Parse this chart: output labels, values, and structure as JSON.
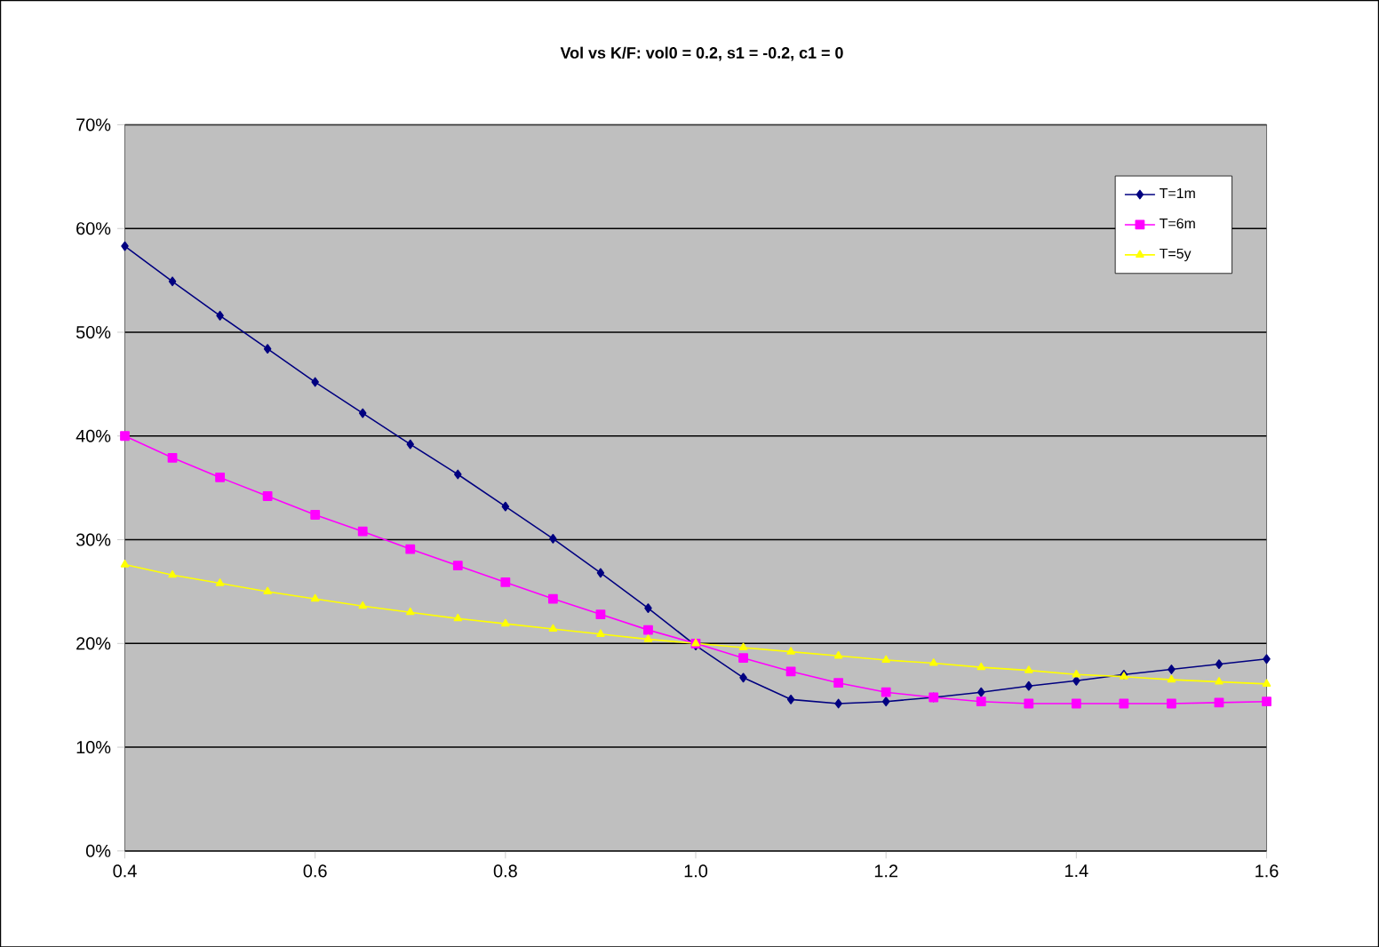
{
  "chart_data": {
    "type": "line",
    "title": "Vol vs K/F:  vol0 = 0.2, s1 = -0.2, c1 = 0",
    "x": [
      0.4,
      0.45,
      0.5,
      0.55,
      0.6,
      0.65,
      0.7,
      0.75,
      0.8,
      0.85,
      0.9,
      0.95,
      1.0,
      1.05,
      1.1,
      1.15,
      1.2,
      1.25,
      1.3,
      1.35,
      1.4,
      1.45,
      1.5,
      1.55,
      1.6
    ],
    "series": [
      {
        "name": "T=1m",
        "color": "#000080",
        "marker": "diamond",
        "values": [
          58.3,
          54.9,
          51.6,
          48.4,
          45.2,
          42.2,
          39.2,
          36.3,
          33.2,
          30.1,
          26.8,
          23.4,
          19.8,
          16.7,
          14.6,
          14.2,
          14.4,
          14.8,
          15.3,
          15.9,
          16.4,
          17.0,
          17.5,
          18.0,
          18.5
        ]
      },
      {
        "name": "T=6m",
        "color": "#ff00ff",
        "marker": "square",
        "values": [
          40.0,
          37.9,
          36.0,
          34.2,
          32.4,
          30.8,
          29.1,
          27.5,
          25.9,
          24.3,
          22.8,
          21.3,
          20.0,
          18.6,
          17.3,
          16.2,
          15.3,
          14.8,
          14.4,
          14.2,
          14.2,
          14.2,
          14.2,
          14.3,
          14.4
        ]
      },
      {
        "name": "T=5y",
        "color": "#ffff00",
        "marker": "triangle",
        "values": [
          27.6,
          26.6,
          25.8,
          25.0,
          24.3,
          23.6,
          23.0,
          22.4,
          21.9,
          21.4,
          20.9,
          20.4,
          20.0,
          19.6,
          19.2,
          18.8,
          18.4,
          18.1,
          17.7,
          17.4,
          17.0,
          16.8,
          16.5,
          16.3,
          16.1
        ]
      }
    ],
    "xlim": [
      0.4,
      1.6
    ],
    "xticks": [
      0.4,
      0.6,
      0.8,
      {
        "value": 1.0,
        "label": "1.0"
      },
      1.2,
      1.4,
      1.6
    ],
    "ylim": [
      0,
      70
    ],
    "yticks": [
      {
        "value": 0,
        "label": "0%"
      },
      {
        "value": 10,
        "label": "10%"
      },
      {
        "value": 20,
        "label": "20%"
      },
      {
        "value": 30,
        "label": "30%"
      },
      {
        "value": 40,
        "label": "40%"
      },
      {
        "value": 50,
        "label": "50%"
      },
      {
        "value": 60,
        "label": "60%"
      },
      {
        "value": 70,
        "label": "70%"
      }
    ],
    "grid": "y",
    "legend": "top right",
    "line_style": "solid"
  }
}
